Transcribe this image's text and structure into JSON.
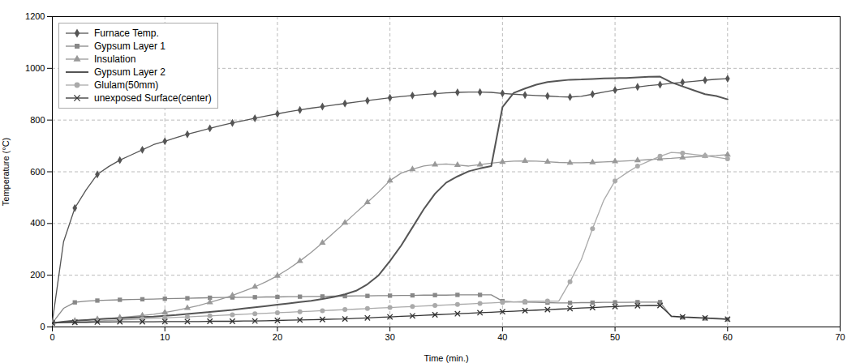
{
  "chart_data": {
    "type": "line",
    "xlabel": "Time (min.)",
    "ylabel": "Temperature (°C)",
    "xlim": [
      0,
      70
    ],
    "ylim": [
      0,
      1200
    ],
    "xticks": [
      0,
      10,
      20,
      30,
      40,
      50,
      60,
      70
    ],
    "yticks": [
      0,
      200,
      400,
      600,
      800,
      1000,
      1200
    ],
    "grid": true,
    "legend": "upper left",
    "x": [
      0,
      1,
      2,
      3,
      4,
      5,
      6,
      7,
      8,
      9,
      10,
      11,
      12,
      13,
      14,
      15,
      16,
      17,
      18,
      19,
      20,
      21,
      22,
      23,
      24,
      25,
      26,
      27,
      28,
      29,
      30,
      31,
      32,
      33,
      34,
      35,
      36,
      37,
      38,
      39,
      40,
      41,
      42,
      43,
      44,
      45,
      46,
      47,
      48,
      49,
      50,
      51,
      52,
      53,
      54,
      55,
      56,
      57,
      58,
      59,
      60
    ],
    "series": [
      {
        "name": "Furnace Temp.",
        "color": "#555555",
        "marker": "diamond",
        "values": [
          20,
          330,
          460,
          530,
          590,
          620,
          645,
          665,
          685,
          705,
          718,
          732,
          745,
          756,
          768,
          779,
          789,
          798,
          807,
          816,
          824,
          832,
          839,
          846,
          852,
          858,
          864,
          870,
          875,
          881,
          886,
          891,
          895,
          899,
          902,
          905,
          907,
          908,
          908,
          907,
          903,
          900,
          897,
          895,
          893,
          890,
          889,
          892,
          900,
          908,
          916,
          922,
          928,
          933,
          937,
          942,
          946,
          950,
          954,
          958,
          960
        ]
      },
      {
        "name": "Gypsum Layer 1",
        "color": "#888888",
        "marker": "square",
        "values": [
          15,
          72,
          95,
          100,
          102,
          104,
          105,
          106,
          107,
          108,
          109,
          110,
          111,
          112,
          113,
          114,
          114,
          115,
          115,
          116,
          116,
          117,
          117,
          118,
          118,
          119,
          119,
          120,
          120,
          121,
          121,
          122,
          122,
          123,
          123,
          123,
          124,
          124,
          124,
          124,
          100,
          97,
          96,
          95,
          94,
          93,
          93,
          94,
          94,
          95,
          95,
          95,
          96,
          96,
          96,
          40,
          37,
          35,
          33,
          31,
          29
        ]
      },
      {
        "name": "Insulation",
        "color": "#999999",
        "marker": "triangle",
        "values": [
          15,
          20,
          24,
          27,
          30,
          33,
          36,
          40,
          44,
          49,
          56,
          64,
          73,
          83,
          95,
          108,
          122,
          138,
          155,
          175,
          198,
          225,
          255,
          288,
          325,
          364,
          403,
          443,
          482,
          522,
          566,
          595,
          610,
          622,
          628,
          630,
          626,
          622,
          628,
          633,
          638,
          641,
          642,
          641,
          639,
          636,
          635,
          635,
          636,
          638,
          640,
          642,
          644,
          647,
          650,
          652,
          655,
          658,
          661,
          663,
          666
        ]
      },
      {
        "name": "Gypsum Layer 2",
        "color": "#555555",
        "marker": "none",
        "values": [
          15,
          20,
          24,
          27,
          30,
          32,
          34,
          36,
          38,
          40,
          43,
          46,
          50,
          54,
          58,
          62,
          66,
          71,
          76,
          81,
          86,
          91,
          96,
          101,
          108,
          116,
          126,
          140,
          165,
          200,
          255,
          315,
          385,
          455,
          515,
          558,
          582,
          602,
          613,
          622,
          850,
          905,
          922,
          937,
          947,
          952,
          956,
          957,
          959,
          961,
          962,
          963,
          965,
          967,
          968,
          946,
          930,
          915,
          900,
          893,
          880
        ]
      },
      {
        "name": "Glulam(50mm)",
        "color": "#aaaaaa",
        "marker": "circle",
        "values": [
          15,
          17,
          19,
          21,
          23,
          25,
          27,
          29,
          31,
          33,
          35,
          37,
          39,
          41,
          43,
          45,
          47,
          49,
          51,
          53,
          55,
          57,
          59,
          61,
          63,
          65,
          67,
          69,
          71,
          73,
          75,
          77,
          79,
          81,
          83,
          85,
          87,
          89,
          91,
          93,
          95,
          97,
          99,
          100,
          100,
          100,
          175,
          260,
          380,
          490,
          565,
          595,
          622,
          641,
          660,
          675,
          672,
          667,
          662,
          656,
          650
        ]
      },
      {
        "name": "unexposed Surface(center)",
        "color": "#333333",
        "marker": "x",
        "values": [
          15,
          17,
          18,
          18,
          19,
          19,
          20,
          20,
          20,
          20,
          21,
          21,
          21,
          21,
          22,
          22,
          22,
          23,
          23,
          24,
          25,
          26,
          27,
          28,
          29,
          30,
          31,
          33,
          35,
          37,
          39,
          41,
          43,
          45,
          47,
          49,
          51,
          53,
          55,
          57,
          59,
          61,
          63,
          65,
          67,
          69,
          71,
          73,
          75,
          77,
          79,
          81,
          82,
          83,
          83,
          42,
          39,
          37,
          35,
          33,
          30
        ]
      }
    ]
  }
}
